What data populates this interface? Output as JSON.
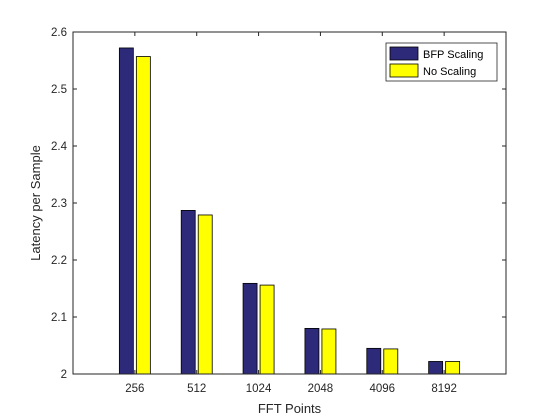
{
  "chart_data": {
    "type": "bar",
    "title": "",
    "xlabel": "FFT Points",
    "ylabel": "Latency per Sample",
    "categories": [
      "256",
      "512",
      "1024",
      "2048",
      "4096",
      "8192"
    ],
    "series": [
      {
        "name": "BFP Scaling",
        "color": "#2e2a7a",
        "values": [
          2.572,
          2.287,
          2.159,
          2.08,
          2.045,
          2.022
        ]
      },
      {
        "name": "No Scaling",
        "color": "#ffff00",
        "values": [
          2.557,
          2.279,
          2.156,
          2.079,
          2.044,
          2.022
        ]
      }
    ],
    "ylim": [
      2,
      2.6
    ],
    "yticks": [
      "2",
      "2.1",
      "2.2",
      "2.3",
      "2.4",
      "2.5",
      "2.6"
    ],
    "grid": false,
    "legend_position": "top-right"
  }
}
